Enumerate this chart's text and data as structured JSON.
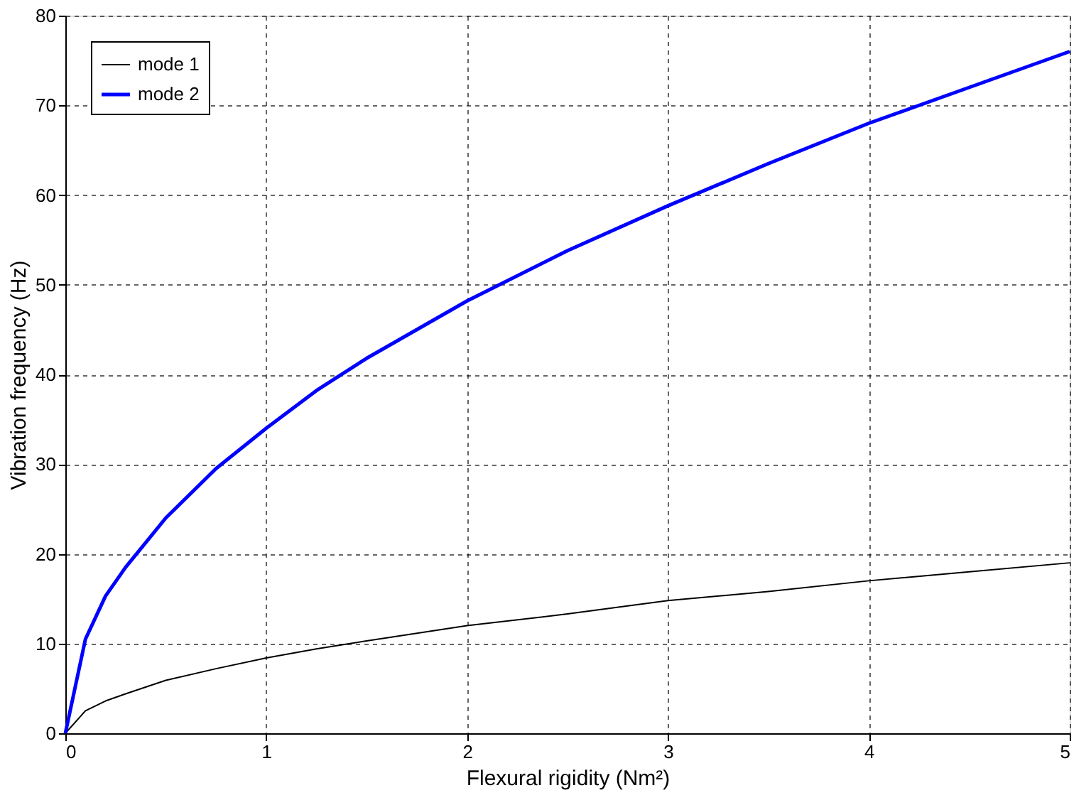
{
  "chart_data": {
    "type": "line",
    "xlabel": "Flexural rigidity (Nm²)",
    "ylabel": "Vibration frequency (Hz)",
    "xlim": [
      0,
      5
    ],
    "xticks": [
      0,
      1,
      2,
      3,
      4,
      5
    ],
    "ylim": [
      0,
      80
    ],
    "yticks": [
      0,
      10,
      20,
      30,
      40,
      50,
      60,
      70,
      80
    ],
    "grid": true,
    "legend": "top left",
    "line_style": "solid",
    "marker": "none",
    "series": [
      {
        "name": "mode 1",
        "color": "#000000",
        "x": [
          0,
          0.1,
          0.2,
          0.3,
          0.5,
          0.75,
          1,
          1.25,
          1.5,
          2,
          2.5,
          3,
          3.5,
          4,
          4.5,
          5
        ],
        "values": [
          0,
          2.5,
          3.6,
          4.4,
          5.9,
          7.2,
          8.4,
          9.4,
          10.3,
          12,
          13.3,
          14.8,
          15.8,
          17,
          18,
          19
        ]
      },
      {
        "name": "mode 2",
        "color": "#0000ff",
        "x": [
          0,
          0.1,
          0.2,
          0.3,
          0.5,
          0.75,
          1,
          1.25,
          1.5,
          2,
          2.5,
          3,
          3.5,
          4,
          4.5,
          5
        ],
        "values": [
          0,
          10.5,
          15.3,
          18.5,
          24,
          29.5,
          34,
          38.2,
          41.8,
          48.2,
          53.8,
          58.8,
          63.5,
          68,
          72,
          76
        ]
      }
    ]
  }
}
